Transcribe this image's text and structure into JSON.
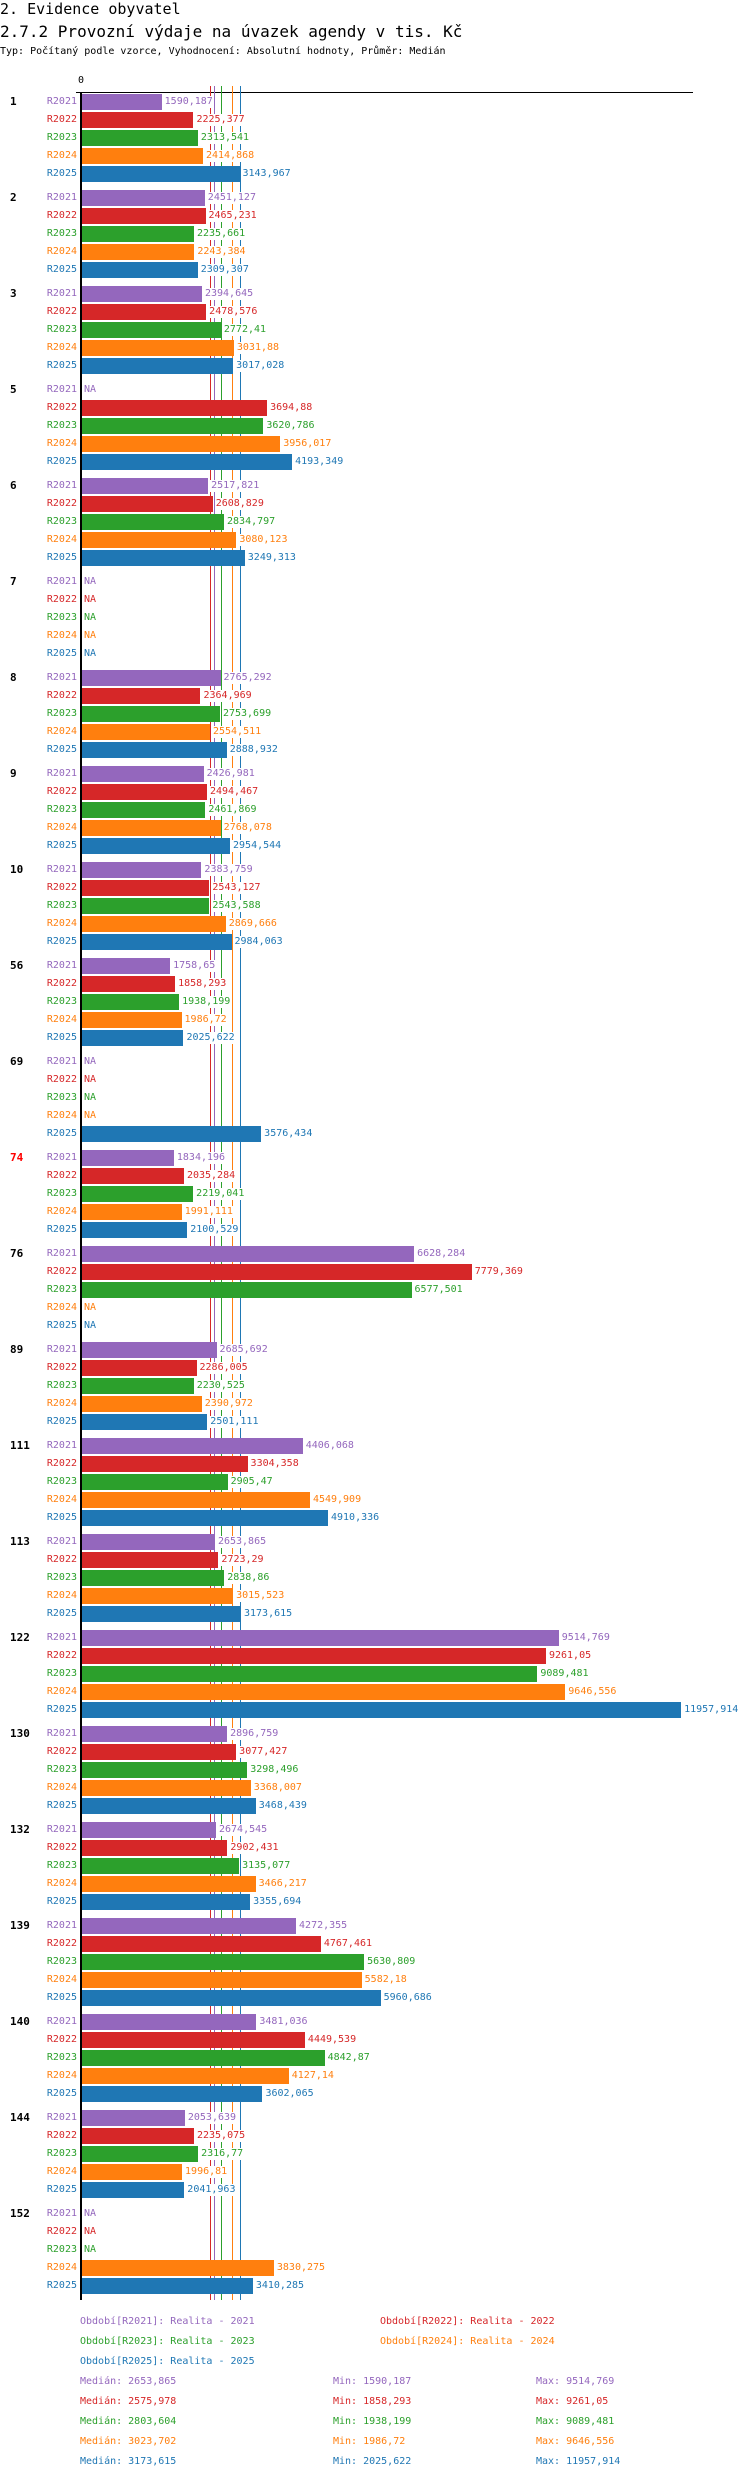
{
  "header": {
    "title": "2. Evidence obyvatel",
    "subtitle": "2.7.2 Provozní výdaje na úvazek agendy v tis. Kč",
    "description": "Typ: Počítaný podle vzorce, Vyhodnocení: Absolutní hodnoty, Průměr: Medián"
  },
  "chart_data": {
    "type": "bar",
    "orientation": "horizontal",
    "title": "2.7.2 Provozní výdaje na úvazek agendy v tis. Kč",
    "x_tick_labels": [
      "0"
    ],
    "series_names": [
      "R2021",
      "R2022",
      "R2023",
      "R2024",
      "R2025"
    ],
    "colors": {
      "R2021": "#9467bd",
      "R2022": "#d62728",
      "R2023": "#2ca02c",
      "R2024": "#ff7f0e",
      "R2025": "#1f77b4"
    },
    "groups": [
      {
        "label": "1",
        "values": [
          "1590,187",
          "2225,377",
          "2313,541",
          "2414,868",
          "3143,967"
        ]
      },
      {
        "label": "2",
        "values": [
          "2451,127",
          "2465,231",
          "2235,661",
          "2243,384",
          "2309,307"
        ]
      },
      {
        "label": "3",
        "values": [
          "2394,645",
          "2478,576",
          "2772,41",
          "3031,88",
          "3017,028"
        ]
      },
      {
        "label": "5",
        "values": [
          "NA",
          "3694,88",
          "3620,786",
          "3956,017",
          "4193,349"
        ]
      },
      {
        "label": "6",
        "values": [
          "2517,821",
          "2608,829",
          "2834,797",
          "3080,123",
          "3249,313"
        ]
      },
      {
        "label": "7",
        "values": [
          "NA",
          "NA",
          "NA",
          "NA",
          "NA"
        ]
      },
      {
        "label": "8",
        "values": [
          "2765,292",
          "2364,969",
          "2753,699",
          "2554,511",
          "2888,932"
        ]
      },
      {
        "label": "9",
        "values": [
          "2426,981",
          "2494,467",
          "2461,869",
          "2768,078",
          "2954,544"
        ]
      },
      {
        "label": "10",
        "values": [
          "2383,759",
          "2543,127",
          "2543,588",
          "2869,666",
          "2984,063"
        ]
      },
      {
        "label": "56",
        "values": [
          "1758,65",
          "1858,293",
          "1938,199",
          "1986,72",
          "2025,622"
        ]
      },
      {
        "label": "69",
        "values": [
          "NA",
          "NA",
          "NA",
          "NA",
          "3576,434"
        ]
      },
      {
        "label": "74",
        "highlight": "#ff0000",
        "values": [
          "1834,196",
          "2035,284",
          "2219,041",
          "1991,111",
          "2100,529"
        ]
      },
      {
        "label": "76",
        "values": [
          "6628,284",
          "7779,369",
          "6577,501",
          "NA",
          "NA"
        ]
      },
      {
        "label": "89",
        "values": [
          "2685,692",
          "2286,005",
          "2230,525",
          "2390,972",
          "2501,111"
        ]
      },
      {
        "label": "111",
        "values": [
          "4406,068",
          "3304,358",
          "2905,47",
          "4549,909",
          "4910,336"
        ]
      },
      {
        "label": "113",
        "values": [
          "2653,865",
          "2723,29",
          "2838,86",
          "3015,523",
          "3173,615"
        ]
      },
      {
        "label": "122",
        "values": [
          "9514,769",
          "9261,05",
          "9089,481",
          "9646,556",
          "11957,914"
        ]
      },
      {
        "label": "130",
        "values": [
          "2896,759",
          "3077,427",
          "3298,496",
          "3368,007",
          "3468,439"
        ]
      },
      {
        "label": "132",
        "values": [
          "2674,545",
          "2902,431",
          "3135,077",
          "3466,217",
          "3355,694"
        ]
      },
      {
        "label": "139",
        "values": [
          "4272,355",
          "4767,461",
          "5630,809",
          "5582,18",
          "5960,686"
        ]
      },
      {
        "label": "140",
        "values": [
          "3481,036",
          "4449,539",
          "4842,87",
          "4127,14",
          "3602,065"
        ]
      },
      {
        "label": "144",
        "values": [
          "2053,639",
          "2235,075",
          "2316,77",
          "1996,81",
          "2041,963"
        ]
      },
      {
        "label": "152",
        "values": [
          "NA",
          "NA",
          "NA",
          "3830,275",
          "3410,285"
        ]
      }
    ],
    "legend": [
      "Období[R2021]: Realita - 2021",
      "Období[R2022]: Realita - 2022",
      "Období[R2023]: Realita - 2023",
      "Období[R2024]: Realita - 2024",
      "Období[R2025]: Realita - 2025"
    ],
    "stats": [
      {
        "median": "Medián: 2653,865",
        "min": "Min: 1590,187",
        "max": "Max: 9514,769",
        "median_value": 2653.865
      },
      {
        "median": "Medián: 2575,978",
        "min": "Min: 1858,293",
        "max": "Max: 9261,05",
        "median_value": 2575.978
      },
      {
        "median": "Medián: 2803,604",
        "min": "Min: 1938,199",
        "max": "Max: 9089,481",
        "median_value": 2803.604
      },
      {
        "median": "Medián: 3023,702",
        "min": "Min: 1986,72",
        "max": "Max: 9646,556",
        "median_value": 3023.702
      },
      {
        "median": "Medián: 3173,615",
        "min": "Min: 2025,622",
        "max": "Max: 11957,914",
        "median_value": 3173.615
      }
    ]
  }
}
